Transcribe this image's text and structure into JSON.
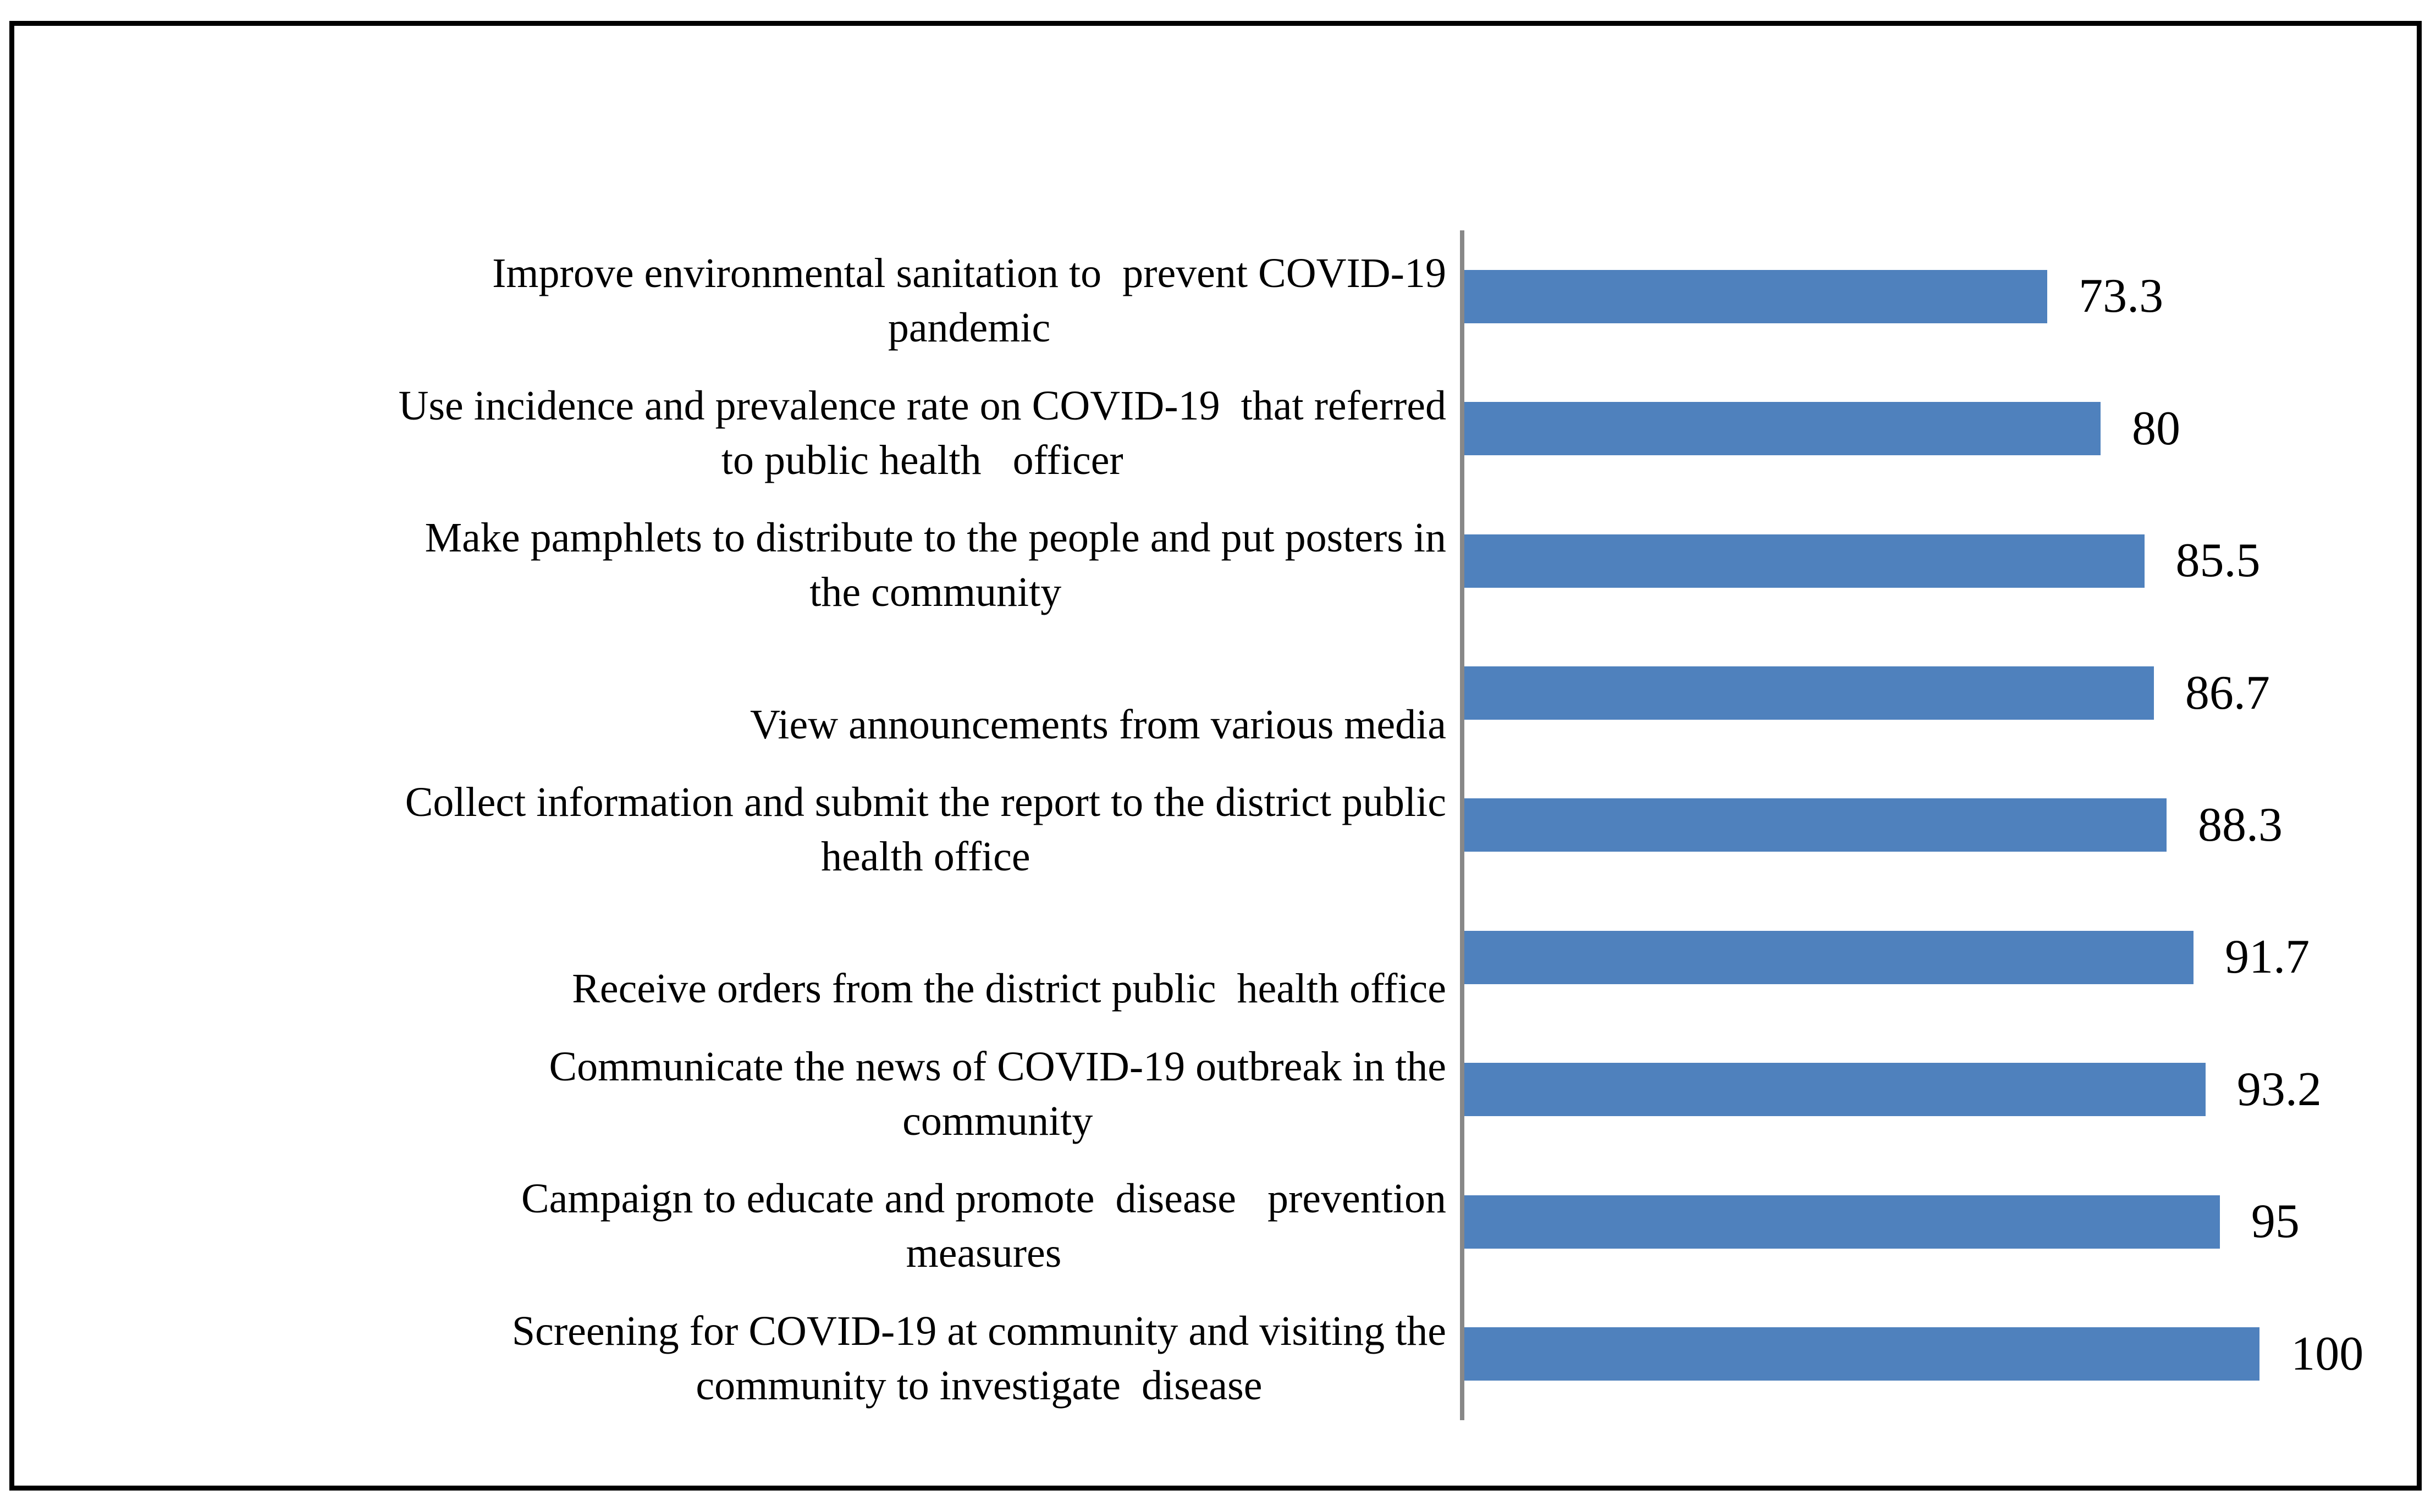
{
  "chart_data": {
    "type": "bar",
    "orientation": "horizontal",
    "title": "",
    "xlabel": "",
    "ylabel": "",
    "xlim": [
      0,
      100
    ],
    "grid": false,
    "legend": false,
    "bar_color": "#4F81BD",
    "axis_color": "#888888",
    "frame_border_color": "#000000",
    "text_color": "#000000",
    "categories": [
      [
        "Improve environmental sanitation to  prevent COVID-19",
        "pandemic"
      ],
      [
        "Use incidence and prevalence rate on COVID-19  that referred",
        "to public health   officer"
      ],
      [
        "Make pamphlets to distribute to the people and put posters in",
        "the community"
      ],
      [
        "",
        "View announcements from various media"
      ],
      [
        "Collect information and submit the report to the district public",
        "health office"
      ],
      [
        "",
        "Receive orders from the district public  health office"
      ],
      [
        "Communicate the news of COVID-19 outbreak in the",
        "community"
      ],
      [
        "Campaign to educate and promote  disease   prevention",
        "measures"
      ],
      [
        "Screening for COVID-19 at community and visiting the",
        "community to investigate  disease"
      ]
    ],
    "values": [
      73.3,
      80,
      85.5,
      86.7,
      88.3,
      91.7,
      93.2,
      95,
      100
    ],
    "value_labels": [
      "73.3",
      "80",
      "85.5",
      "86.7",
      "88.3",
      "91.7",
      "93.2",
      "95",
      "100"
    ]
  }
}
